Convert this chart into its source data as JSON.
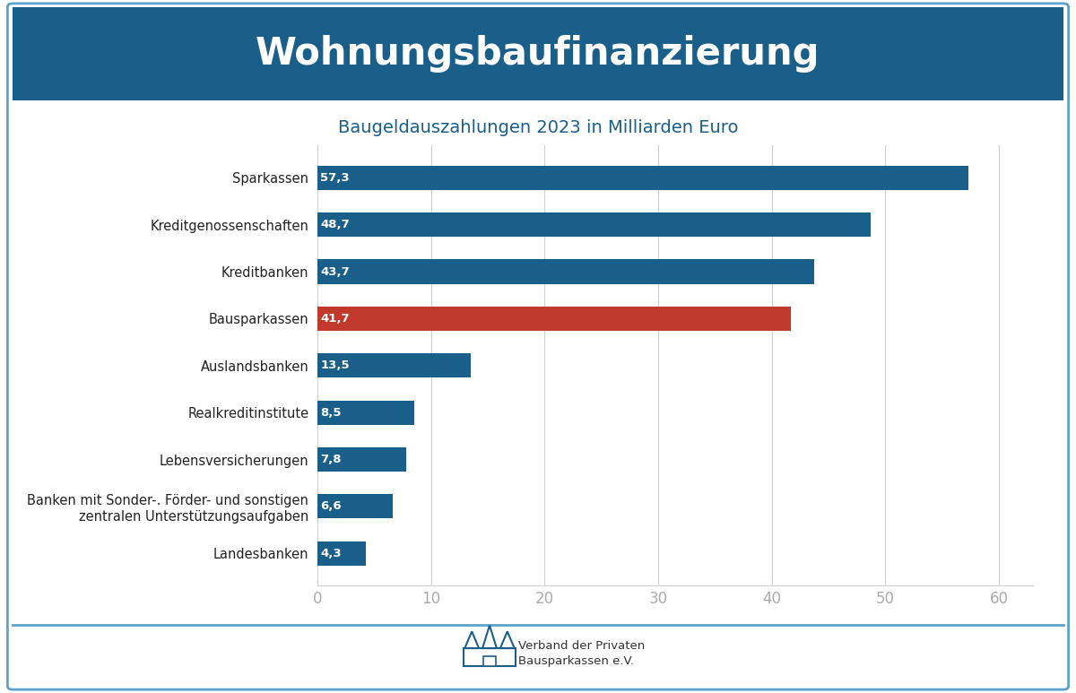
{
  "title": "Wohnungsbaufinanzierung",
  "subtitle": "Baugeldauszahlungen 2023 in Milliarden Euro",
  "categories": [
    "Sparkassen",
    "Kreditgenossenschaften",
    "Kreditbanken",
    "Bausparkassen",
    "Auslandsbanken",
    "Realkreditinstitute",
    "Lebensversicherungen",
    "Banken mit Sonder-. Förder- und sonstigen\nzentralen Unterstützungsaufgaben",
    "Landesbanken"
  ],
  "values": [
    57.3,
    48.7,
    43.7,
    41.7,
    13.5,
    8.5,
    7.8,
    6.6,
    4.3
  ],
  "bar_colors": [
    "#1a5f8a",
    "#1a5f8a",
    "#1a5f8a",
    "#c0392b",
    "#1a5f8a",
    "#1a5f8a",
    "#1a5f8a",
    "#1a5f8a",
    "#1a5f8a"
  ],
  "value_labels": [
    "57,3",
    "48,7",
    "43,7",
    "41,7",
    "13,5",
    "8,5",
    "7,8",
    "6,6",
    "4,3"
  ],
  "title_bg_color": "#1a5f8a",
  "title_text_color": "#ffffff",
  "subtitle_color": "#1a5f8a",
  "border_color": "#5ba3c9",
  "background_color": "#ffffff",
  "xlim": [
    0,
    63
  ],
  "xticks": [
    0,
    10,
    20,
    30,
    40,
    50,
    60
  ],
  "bar_height": 0.52,
  "grid_color": "#d0d0d0",
  "tick_color": "#aaaaaa",
  "footer_text_line1": "Verband der Privaten",
  "footer_text_line2": "Bausparkassen e.V.",
  "footer_line_color": "#5ba3c9",
  "title_fontsize": 30,
  "subtitle_fontsize": 14,
  "label_fontsize": 9.5,
  "ytick_fontsize": 10.5,
  "xtick_fontsize": 12
}
